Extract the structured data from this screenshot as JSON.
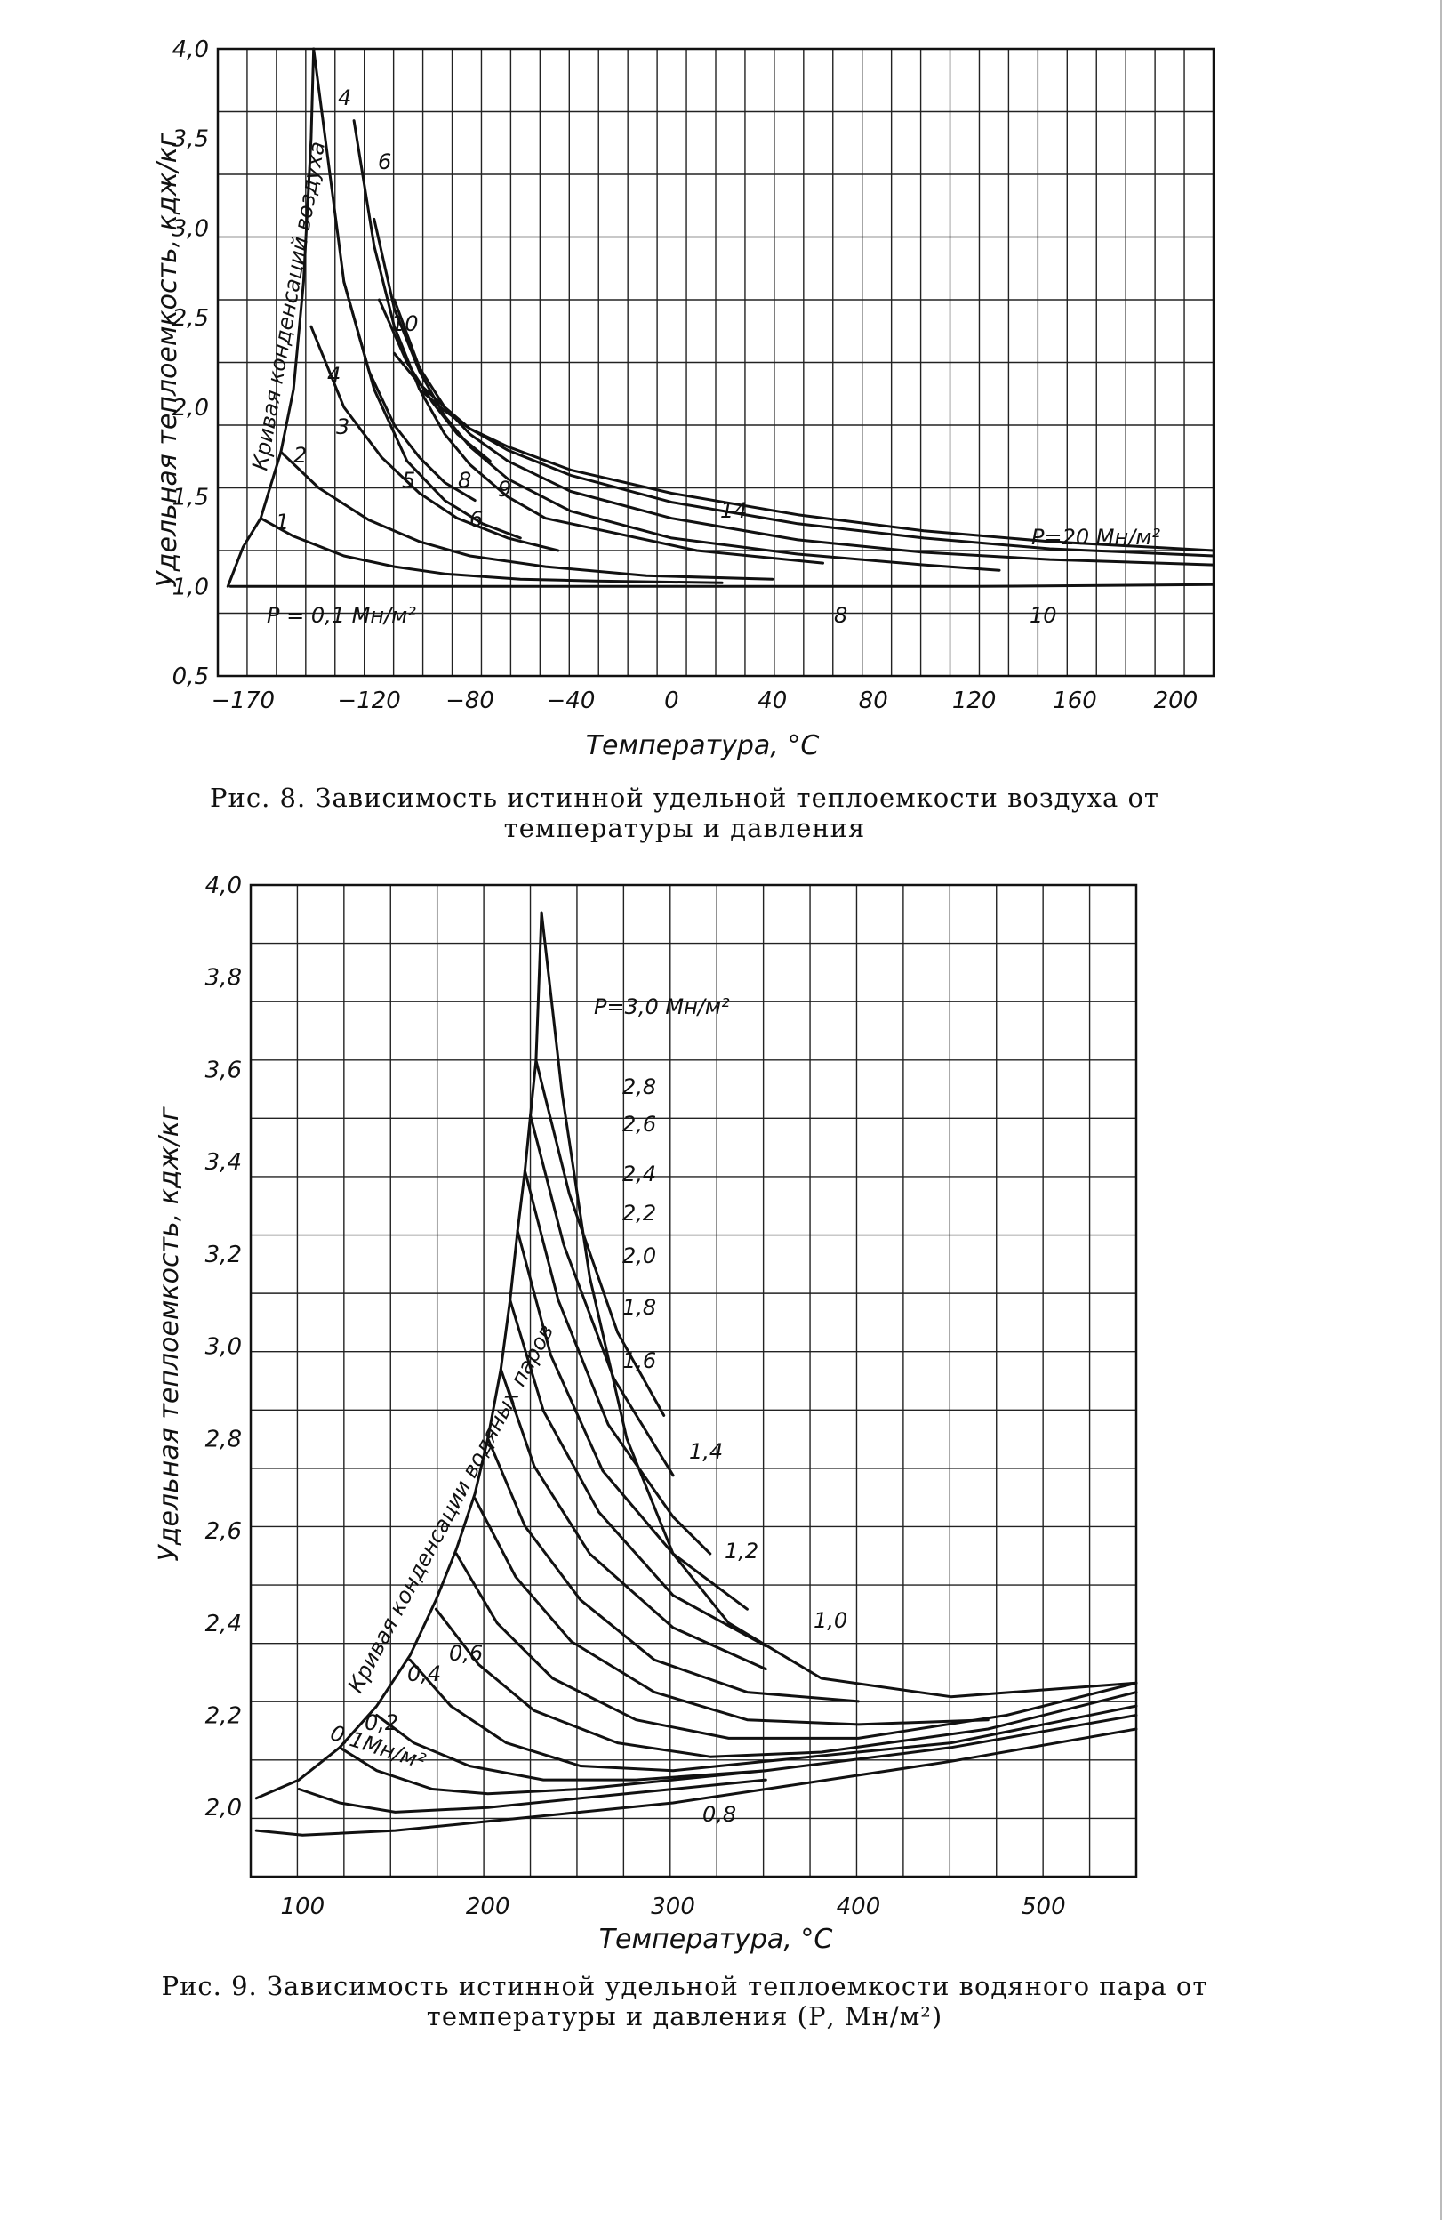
{
  "chart_data": [
    {
      "type": "line",
      "caption": "Рис. 8. Зависимость истинной удельной теплоемкости воздуха от температуры и давления",
      "xlabel": "Температура, °С",
      "ylabel": "Удельная теплоемкость, кдж/кг",
      "xlim": [
        -180,
        215
      ],
      "ylim": [
        0.5,
        4.0
      ],
      "xticks": [
        -170,
        -120,
        -80,
        -40,
        0,
        40,
        80,
        120,
        160,
        200
      ],
      "yticks": [
        0.5,
        1.0,
        1.5,
        2.0,
        2.5,
        3.0,
        3.5,
        4.0
      ],
      "ytick_labels": [
        "0,5",
        "1,0",
        "1,5",
        "2,0",
        "2,5",
        "3,0",
        "3,5",
        "4,0"
      ],
      "grid": true,
      "annotations": {
        "condensation_curve": "Кривая конденсаций воздуха",
        "p_low": "P = 0,1 Мн/м²",
        "p_high": "P=20 Мн/м²"
      },
      "series": [
        {
          "name": "P = 0,1 Мн/м²",
          "x": [
            -175,
            -140,
            -100,
            -60,
            0,
            60,
            120,
            215
          ],
          "y": [
            1.0,
            1.0,
            1.0,
            1.0,
            1.0,
            1.0,
            1.0,
            1.01
          ]
        },
        {
          "name": "1",
          "x": [
            -163,
            -150,
            -130,
            -110,
            -90,
            -60,
            -30,
            20
          ],
          "y": [
            1.38,
            1.28,
            1.17,
            1.11,
            1.07,
            1.04,
            1.03,
            1.02
          ]
        },
        {
          "name": "2",
          "x": [
            -155,
            -140,
            -120,
            -100,
            -80,
            -50,
            -10,
            40
          ],
          "y": [
            1.75,
            1.55,
            1.37,
            1.25,
            1.17,
            1.11,
            1.06,
            1.04
          ]
        },
        {
          "name": "3",
          "x": [
            -143,
            -130,
            -115,
            -100,
            -85,
            -65,
            -45
          ],
          "y": [
            2.45,
            2.0,
            1.72,
            1.52,
            1.38,
            1.27,
            1.2
          ]
        },
        {
          "name": "4",
          "x": [
            -142,
            -130,
            -118,
            -105,
            -90,
            -75,
            -60
          ],
          "y": [
            4.0,
            2.7,
            2.1,
            1.7,
            1.48,
            1.35,
            1.27
          ]
        },
        {
          "name": "5",
          "x": [
            -130,
            -120,
            -110,
            -100,
            -90,
            -78
          ],
          "y": [
            2.7,
            2.2,
            1.9,
            1.72,
            1.58,
            1.48
          ]
        },
        {
          "name": "6",
          "x": [
            -126,
            -118,
            -110,
            -100,
            -90,
            -80,
            -65,
            -50,
            10,
            60
          ],
          "y": [
            3.6,
            2.9,
            2.45,
            2.1,
            1.85,
            1.68,
            1.5,
            1.38,
            1.2,
            1.13
          ]
        },
        {
          "name": "8",
          "x": [
            -118,
            -110,
            -100,
            -90,
            -80,
            -65,
            -40,
            0,
            50,
            100,
            130
          ],
          "y": [
            3.05,
            2.55,
            2.2,
            1.95,
            1.78,
            1.6,
            1.42,
            1.27,
            1.18,
            1.12,
            1.09
          ]
        },
        {
          "name": "9",
          "x": [
            -116,
            -105,
            -95,
            -85,
            -72
          ],
          "y": [
            2.6,
            2.25,
            2.03,
            1.85,
            1.7
          ]
        },
        {
          "name": "10",
          "x": [
            -110,
            -100,
            -90,
            -80,
            -65,
            -40,
            0,
            50,
            100,
            150,
            215
          ],
          "y": [
            2.6,
            2.22,
            2.0,
            1.85,
            1.7,
            1.53,
            1.38,
            1.26,
            1.19,
            1.15,
            1.12
          ]
        },
        {
          "name": "14",
          "x": [
            -110,
            -100,
            -90,
            -80,
            -65,
            -40,
            0,
            50,
            100,
            150,
            215
          ],
          "y": [
            2.3,
            2.13,
            2.0,
            1.88,
            1.76,
            1.62,
            1.47,
            1.35,
            1.27,
            1.21,
            1.17
          ]
        },
        {
          "name": "P=20 Мн/м²",
          "x": [
            -100,
            -90,
            -80,
            -65,
            -40,
            0,
            50,
            100,
            150,
            215
          ],
          "y": [
            2.1,
            1.98,
            1.88,
            1.78,
            1.65,
            1.52,
            1.4,
            1.31,
            1.25,
            1.2
          ]
        },
        {
          "name": "Кривая конденсаций воздуха",
          "x": [
            -176,
            -170,
            -163,
            -155,
            -150,
            -146,
            -143,
            -142
          ],
          "y": [
            1.0,
            1.22,
            1.38,
            1.75,
            2.1,
            2.7,
            3.5,
            4.0
          ]
        }
      ],
      "curve_labels": [
        "1",
        "2",
        "3",
        "4",
        "5",
        "6",
        "8",
        "9",
        "10",
        "14",
        "4",
        "6",
        "8",
        "10"
      ]
    },
    {
      "type": "line",
      "caption": "Рис. 9. Зависимость истинной удельной теплоемкости водяного пара от температуры и давления (Р, Мн/м²)",
      "xlabel": "Температура, °С",
      "ylabel": "Удельная теплоемкость, кдж/кг",
      "xlim": [
        72,
        550
      ],
      "ylim": [
        1.85,
        4.0
      ],
      "xticks": [
        100,
        200,
        300,
        400,
        500
      ],
      "yticks": [
        2.0,
        2.2,
        2.4,
        2.6,
        2.8,
        3.0,
        3.2,
        3.4,
        3.6,
        3.8,
        4.0
      ],
      "ytick_labels": [
        "2,0",
        "2,2",
        "2,4",
        "2,6",
        "2,8",
        "3,0",
        "3,2",
        "3,4",
        "3,6",
        "3,8",
        "4,0"
      ],
      "grid": true,
      "annotations": {
        "condensation_curve": "Кривая конденсации водяных паров",
        "p_top": "P=3,0 Мн/м²",
        "p_bottom": "0,1Мн/м²"
      },
      "series": [
        {
          "name": "0,1 Мн/м²",
          "x": [
            75,
            100,
            150,
            200,
            250,
            300,
            350,
            400,
            450,
            550
          ],
          "y": [
            1.95,
            1.94,
            1.95,
            1.97,
            1.99,
            2.01,
            2.04,
            2.07,
            2.1,
            2.17
          ]
        },
        {
          "name": "0,2",
          "x": [
            98,
            120,
            150,
            200,
            250,
            300,
            350
          ],
          "y": [
            2.04,
            2.01,
            1.99,
            2.0,
            2.02,
            2.04,
            2.06
          ]
        },
        {
          "name": "0,4",
          "x": [
            120,
            140,
            170,
            200,
            250,
            300,
            350
          ],
          "y": [
            2.13,
            2.08,
            2.04,
            2.03,
            2.04,
            2.06,
            2.08
          ]
        },
        {
          "name": "0,6",
          "x": [
            140,
            160,
            190,
            230,
            280,
            350,
            450,
            550
          ],
          "y": [
            2.2,
            2.14,
            2.09,
            2.06,
            2.06,
            2.08,
            2.13,
            2.2
          ]
        },
        {
          "name": "0,8",
          "x": [
            158,
            180,
            210,
            250,
            300,
            350,
            450,
            550
          ],
          "y": [
            2.32,
            2.22,
            2.14,
            2.09,
            2.08,
            2.1,
            2.14,
            2.22
          ]
        },
        {
          "name": "1,0",
          "x": [
            172,
            195,
            225,
            270,
            320,
            380,
            470,
            550
          ],
          "y": [
            2.43,
            2.31,
            2.21,
            2.14,
            2.11,
            2.12,
            2.17,
            2.25
          ]
        },
        {
          "name": "1,2",
          "x": [
            183,
            205,
            235,
            280,
            330,
            400,
            480,
            550
          ],
          "y": [
            2.55,
            2.4,
            2.28,
            2.19,
            2.15,
            2.15,
            2.2,
            2.27
          ]
        },
        {
          "name": "1,4",
          "x": [
            193,
            215,
            245,
            290,
            340,
            400,
            470
          ],
          "y": [
            2.67,
            2.5,
            2.36,
            2.25,
            2.19,
            2.18,
            2.19
          ]
        },
        {
          "name": "1,6",
          "x": [
            200,
            220,
            250,
            290,
            340,
            400
          ],
          "y": [
            2.8,
            2.61,
            2.45,
            2.32,
            2.25,
            2.23
          ]
        },
        {
          "name": "1,8",
          "x": [
            207,
            225,
            255,
            300,
            350
          ],
          "y": [
            2.95,
            2.74,
            2.55,
            2.39,
            2.3
          ]
        },
        {
          "name": "2,0",
          "x": [
            212,
            230,
            260,
            300,
            350
          ],
          "y": [
            3.1,
            2.86,
            2.64,
            2.46,
            2.35
          ]
        },
        {
          "name": "2,2",
          "x": [
            216,
            234,
            262,
            300,
            340
          ],
          "y": [
            3.25,
            2.98,
            2.73,
            2.55,
            2.43
          ]
        },
        {
          "name": "2,4",
          "x": [
            220,
            238,
            265,
            300,
            320
          ],
          "y": [
            3.38,
            3.1,
            2.83,
            2.63,
            2.55
          ]
        },
        {
          "name": "2,6",
          "x": [
            223,
            241,
            268,
            300
          ],
          "y": [
            3.5,
            3.22,
            2.93,
            2.72
          ]
        },
        {
          "name": "2,8",
          "x": [
            226,
            244,
            270,
            295
          ],
          "y": [
            3.62,
            3.33,
            3.03,
            2.85
          ]
        },
        {
          "name": "P=3,0 Мн/м²",
          "x": [
            229,
            240,
            255,
            275,
            300,
            330,
            380,
            450,
            550
          ],
          "y": [
            3.94,
            3.55,
            3.15,
            2.8,
            2.55,
            2.4,
            2.28,
            2.24,
            2.27
          ]
        },
        {
          "name": "Кривая конденсации водяных паров",
          "x": [
            75,
            98,
            120,
            140,
            158,
            172,
            183,
            193,
            200,
            207,
            212,
            216,
            220,
            223,
            226,
            229
          ],
          "y": [
            2.02,
            2.06,
            2.13,
            2.22,
            2.33,
            2.45,
            2.56,
            2.68,
            2.8,
            2.95,
            3.1,
            3.25,
            3.38,
            3.5,
            3.62,
            3.94
          ]
        }
      ],
      "curve_labels": [
        "2,8",
        "2,6",
        "2,4",
        "2,2",
        "2,0",
        "1,8",
        "1,6",
        "1,4",
        "1,2",
        "1,0",
        "0,8",
        "0,6",
        "0,4",
        "0,2"
      ]
    }
  ]
}
